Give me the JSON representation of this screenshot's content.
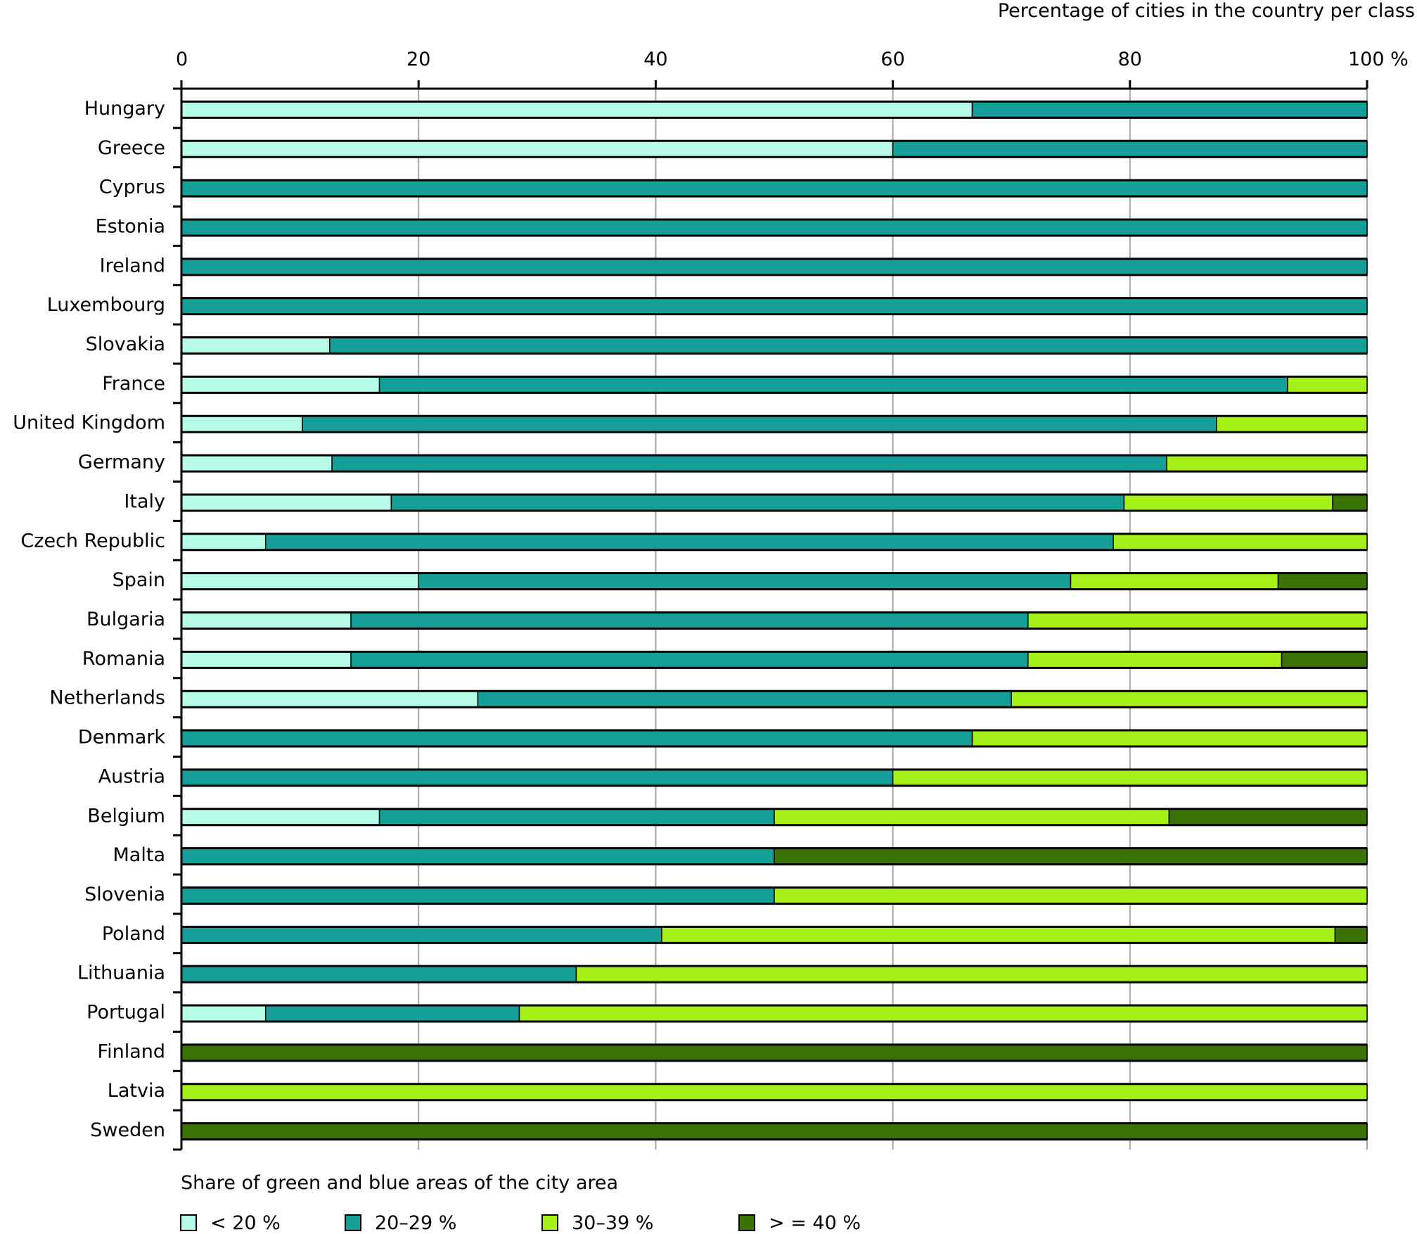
{
  "chart_data": {
    "type": "bar",
    "orientation": "horizontal",
    "stacked": true,
    "title": "Percentage of cities in the country per class",
    "xlabel": "Percentage of cities in the country per class",
    "ylabel": "",
    "xlim": [
      0,
      100
    ],
    "x_ticks": [
      "0",
      "20",
      "40",
      "60",
      "80",
      "100 %"
    ],
    "x_tick_values": [
      0,
      20,
      40,
      60,
      80,
      100
    ],
    "grid": true,
    "legend_title": "Share of green and blue areas of the city area",
    "legend_position": "bottom-left",
    "categories": [
      "Hungary",
      "Greece",
      "Cyprus",
      "Estonia",
      "Ireland",
      "Luxembourg",
      "Slovakia",
      "France",
      "United Kingdom",
      "Germany",
      "Italy",
      "Czech Republic",
      "Spain",
      "Bulgaria",
      "Romania",
      "Netherlands",
      "Denmark",
      "Austria",
      "Belgium",
      "Malta",
      "Slovenia",
      "Poland",
      "Lithuania",
      "Portugal",
      "Finland",
      "Latvia",
      "Sweden"
    ],
    "series": [
      {
        "name": "< 20 %",
        "color": "#b6fce8",
        "values": [
          66.7,
          60,
          0,
          0,
          0,
          0,
          12.5,
          16.7,
          10.2,
          12.7,
          17.7,
          7.1,
          20,
          14.3,
          14.3,
          25,
          0,
          0,
          16.7,
          0,
          0,
          0,
          0,
          7.1,
          0,
          0,
          0
        ]
      },
      {
        "name": "20–29 %",
        "color": "#169e98",
        "values": [
          33.3,
          40,
          100,
          100,
          100,
          100,
          87.5,
          76.6,
          77.1,
          70.4,
          61.8,
          71.5,
          55,
          57.1,
          57.1,
          45,
          66.7,
          60,
          33.3,
          50,
          50,
          40.5,
          33.3,
          21.4,
          0,
          0,
          0
        ]
      },
      {
        "name": "30–39 %",
        "color": "#a6f01a",
        "values": [
          0,
          0,
          0,
          0,
          0,
          0,
          0,
          6.7,
          12.7,
          16.9,
          17.6,
          21.4,
          17.5,
          28.6,
          21.4,
          30,
          33.3,
          40,
          33.3,
          0,
          50,
          56.8,
          66.7,
          71.5,
          0,
          100,
          0
        ]
      },
      {
        "name": "> = 40 %",
        "color": "#3b7305",
        "values": [
          0,
          0,
          0,
          0,
          0,
          0,
          0,
          0,
          0,
          0,
          2.9,
          0,
          7.5,
          0,
          7.2,
          0,
          0,
          0,
          16.7,
          50,
          0,
          2.7,
          0,
          0,
          100,
          0,
          100
        ]
      }
    ]
  }
}
